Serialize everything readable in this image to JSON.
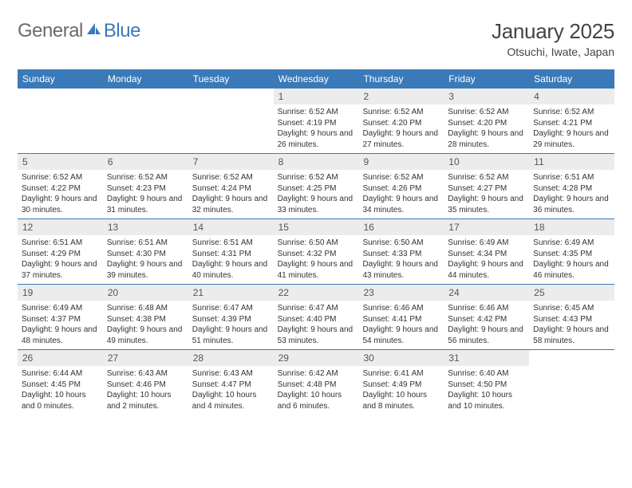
{
  "brand": {
    "part1": "General",
    "part2": "Blue"
  },
  "title": "January 2025",
  "location": "Otsuchi, Iwate, Japan",
  "colors": {
    "header_bar": "#3a7ab8",
    "daynum_bg": "#ececec",
    "text": "#333333",
    "brand_gray": "#6b6b6b",
    "brand_blue": "#3a7ab8"
  },
  "weekdays": [
    "Sunday",
    "Monday",
    "Tuesday",
    "Wednesday",
    "Thursday",
    "Friday",
    "Saturday"
  ],
  "weeks": [
    [
      {
        "n": "",
        "empty": true
      },
      {
        "n": "",
        "empty": true
      },
      {
        "n": "",
        "empty": true
      },
      {
        "n": "1",
        "sr": "6:52 AM",
        "ss": "4:19 PM",
        "dl": "9 hours and 26 minutes."
      },
      {
        "n": "2",
        "sr": "6:52 AM",
        "ss": "4:20 PM",
        "dl": "9 hours and 27 minutes."
      },
      {
        "n": "3",
        "sr": "6:52 AM",
        "ss": "4:20 PM",
        "dl": "9 hours and 28 minutes."
      },
      {
        "n": "4",
        "sr": "6:52 AM",
        "ss": "4:21 PM",
        "dl": "9 hours and 29 minutes."
      }
    ],
    [
      {
        "n": "5",
        "sr": "6:52 AM",
        "ss": "4:22 PM",
        "dl": "9 hours and 30 minutes."
      },
      {
        "n": "6",
        "sr": "6:52 AM",
        "ss": "4:23 PM",
        "dl": "9 hours and 31 minutes."
      },
      {
        "n": "7",
        "sr": "6:52 AM",
        "ss": "4:24 PM",
        "dl": "9 hours and 32 minutes."
      },
      {
        "n": "8",
        "sr": "6:52 AM",
        "ss": "4:25 PM",
        "dl": "9 hours and 33 minutes."
      },
      {
        "n": "9",
        "sr": "6:52 AM",
        "ss": "4:26 PM",
        "dl": "9 hours and 34 minutes."
      },
      {
        "n": "10",
        "sr": "6:52 AM",
        "ss": "4:27 PM",
        "dl": "9 hours and 35 minutes."
      },
      {
        "n": "11",
        "sr": "6:51 AM",
        "ss": "4:28 PM",
        "dl": "9 hours and 36 minutes."
      }
    ],
    [
      {
        "n": "12",
        "sr": "6:51 AM",
        "ss": "4:29 PM",
        "dl": "9 hours and 37 minutes."
      },
      {
        "n": "13",
        "sr": "6:51 AM",
        "ss": "4:30 PM",
        "dl": "9 hours and 39 minutes."
      },
      {
        "n": "14",
        "sr": "6:51 AM",
        "ss": "4:31 PM",
        "dl": "9 hours and 40 minutes."
      },
      {
        "n": "15",
        "sr": "6:50 AM",
        "ss": "4:32 PM",
        "dl": "9 hours and 41 minutes."
      },
      {
        "n": "16",
        "sr": "6:50 AM",
        "ss": "4:33 PM",
        "dl": "9 hours and 43 minutes."
      },
      {
        "n": "17",
        "sr": "6:49 AM",
        "ss": "4:34 PM",
        "dl": "9 hours and 44 minutes."
      },
      {
        "n": "18",
        "sr": "6:49 AM",
        "ss": "4:35 PM",
        "dl": "9 hours and 46 minutes."
      }
    ],
    [
      {
        "n": "19",
        "sr": "6:49 AM",
        "ss": "4:37 PM",
        "dl": "9 hours and 48 minutes."
      },
      {
        "n": "20",
        "sr": "6:48 AM",
        "ss": "4:38 PM",
        "dl": "9 hours and 49 minutes."
      },
      {
        "n": "21",
        "sr": "6:47 AM",
        "ss": "4:39 PM",
        "dl": "9 hours and 51 minutes."
      },
      {
        "n": "22",
        "sr": "6:47 AM",
        "ss": "4:40 PM",
        "dl": "9 hours and 53 minutes."
      },
      {
        "n": "23",
        "sr": "6:46 AM",
        "ss": "4:41 PM",
        "dl": "9 hours and 54 minutes."
      },
      {
        "n": "24",
        "sr": "6:46 AM",
        "ss": "4:42 PM",
        "dl": "9 hours and 56 minutes."
      },
      {
        "n": "25",
        "sr": "6:45 AM",
        "ss": "4:43 PM",
        "dl": "9 hours and 58 minutes."
      }
    ],
    [
      {
        "n": "26",
        "sr": "6:44 AM",
        "ss": "4:45 PM",
        "dl": "10 hours and 0 minutes."
      },
      {
        "n": "27",
        "sr": "6:43 AM",
        "ss": "4:46 PM",
        "dl": "10 hours and 2 minutes."
      },
      {
        "n": "28",
        "sr": "6:43 AM",
        "ss": "4:47 PM",
        "dl": "10 hours and 4 minutes."
      },
      {
        "n": "29",
        "sr": "6:42 AM",
        "ss": "4:48 PM",
        "dl": "10 hours and 6 minutes."
      },
      {
        "n": "30",
        "sr": "6:41 AM",
        "ss": "4:49 PM",
        "dl": "10 hours and 8 minutes."
      },
      {
        "n": "31",
        "sr": "6:40 AM",
        "ss": "4:50 PM",
        "dl": "10 hours and 10 minutes."
      },
      {
        "n": "",
        "empty": true
      }
    ]
  ],
  "labels": {
    "sunrise": "Sunrise:",
    "sunset": "Sunset:",
    "daylight": "Daylight:"
  }
}
